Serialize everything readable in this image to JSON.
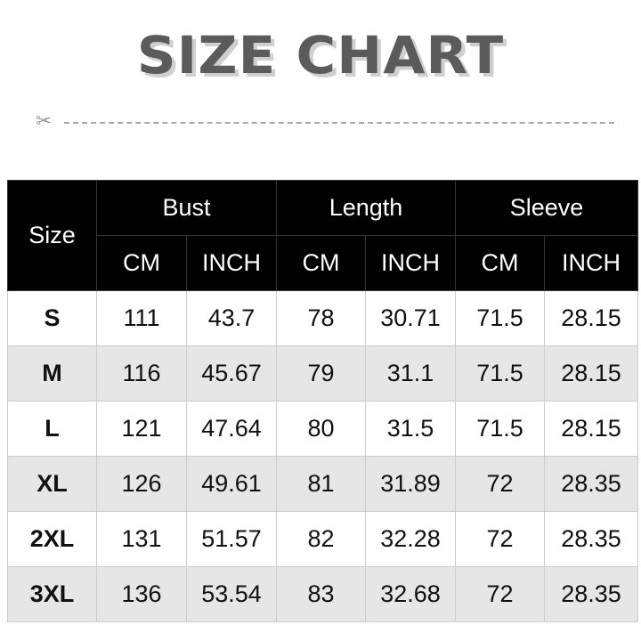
{
  "title": "SIZE CHART",
  "header": {
    "size": "Size",
    "groups": [
      "Bust",
      "Length",
      "Sleeve"
    ],
    "units": [
      "CM",
      "INCH",
      "CM",
      "INCH",
      "CM",
      "INCH"
    ]
  },
  "rows": [
    [
      "S",
      "111",
      "43.7",
      "78",
      "30.71",
      "71.5",
      "28.15"
    ],
    [
      "M",
      "116",
      "45.67",
      "79",
      "31.1",
      "71.5",
      "28.15"
    ],
    [
      "L",
      "121",
      "47.64",
      "80",
      "31.5",
      "71.5",
      "28.15"
    ],
    [
      "XL",
      "126",
      "49.61",
      "81",
      "31.89",
      "72",
      "28.35"
    ],
    [
      "2XL",
      "131",
      "51.57",
      "82",
      "32.28",
      "72",
      "28.35"
    ],
    [
      "3XL",
      "136",
      "53.54",
      "83",
      "32.68",
      "72",
      "28.35"
    ]
  ],
  "colors": {
    "header_bg": "#000000",
    "alt_row": "#e6e6e6",
    "title": "#5b5b5b"
  }
}
